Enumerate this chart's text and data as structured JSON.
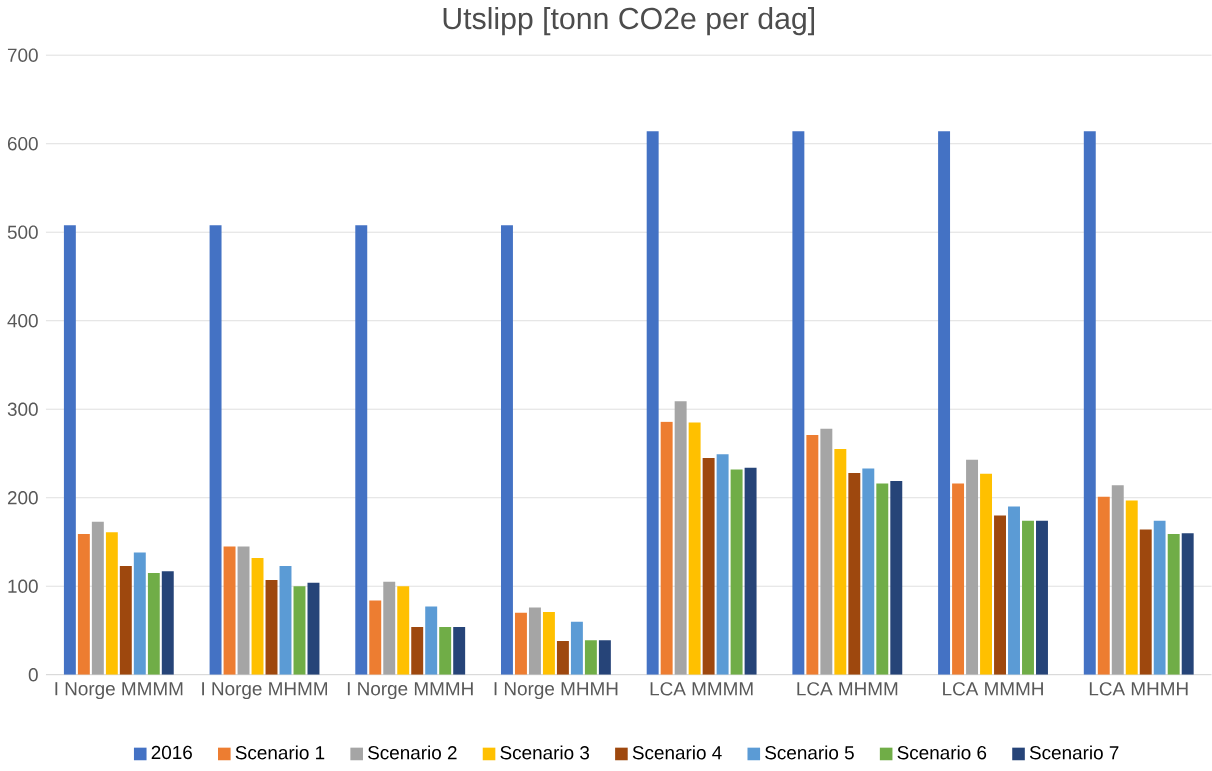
{
  "chart_data": {
    "type": "bar",
    "title": "Utslipp [tonn CO2e per dag]",
    "categories": [
      "I Norge MMMM",
      "I Norge MHMM",
      "I Norge MMMH",
      "I Norge MHMH",
      "LCA MMMM",
      "LCA MHMM",
      "LCA MMMH",
      "LCA MHMH"
    ],
    "series": [
      {
        "name": "2016",
        "color": "#4472c4",
        "values": [
          508,
          508,
          508,
          508,
          614,
          614,
          614,
          614
        ]
      },
      {
        "name": "Scenario 1",
        "color": "#ed7d31",
        "values": [
          159,
          145,
          84,
          70,
          286,
          271,
          216,
          201
        ]
      },
      {
        "name": "Scenario 2",
        "color": "#a5a5a5",
        "values": [
          173,
          145,
          105,
          76,
          309,
          278,
          243,
          214
        ]
      },
      {
        "name": "Scenario 3",
        "color": "#ffc000",
        "values": [
          161,
          132,
          100,
          71,
          285,
          255,
          227,
          197
        ]
      },
      {
        "name": "Scenario 4",
        "color": "#9e480e",
        "values": [
          123,
          107,
          54,
          38,
          245,
          228,
          180,
          164
        ]
      },
      {
        "name": "Scenario 5",
        "color": "#5b9bd5",
        "values": [
          138,
          123,
          77,
          60,
          249,
          233,
          190,
          174
        ]
      },
      {
        "name": "Scenario 6",
        "color": "#70ad47",
        "values": [
          115,
          100,
          54,
          39,
          232,
          216,
          174,
          159
        ]
      },
      {
        "name": "Scenario 7",
        "color": "#264478",
        "values": [
          117,
          104,
          54,
          39,
          234,
          219,
          174,
          160
        ]
      }
    ],
    "ylim": [
      0,
      700
    ],
    "yticks": [
      0,
      100,
      200,
      300,
      400,
      500,
      600,
      700
    ],
    "grid": "y",
    "legend": "bottom"
  }
}
